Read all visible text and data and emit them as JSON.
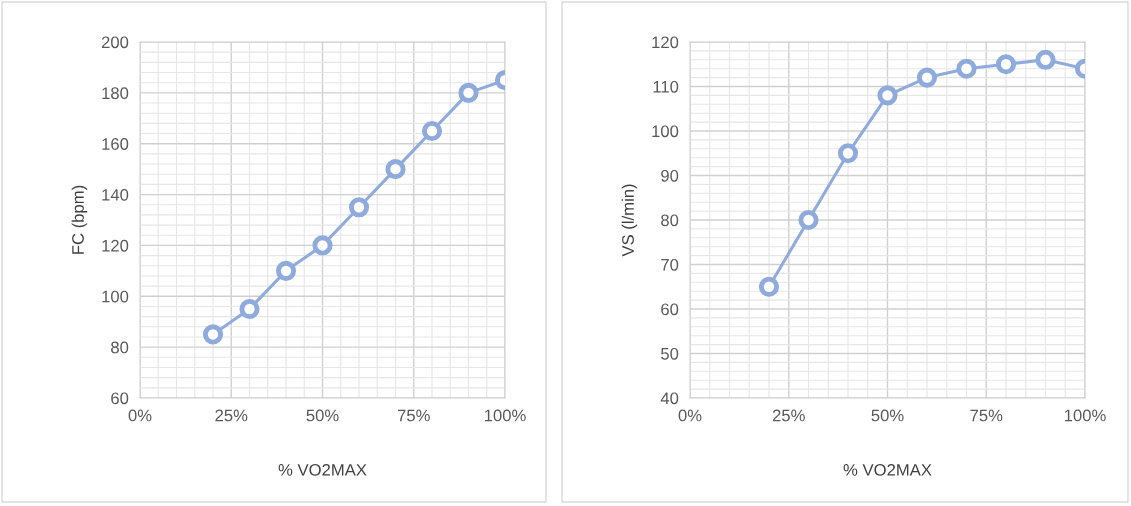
{
  "chart_data": [
    {
      "type": "line",
      "xlabel": "% VO2MAX",
      "ylabel": "FC (bpm)",
      "x": [
        20,
        30,
        40,
        50,
        60,
        70,
        80,
        90,
        100
      ],
      "series": [
        {
          "color": "#8faadc",
          "values": [
            85,
            95,
            110,
            120,
            135,
            150,
            165,
            180,
            185
          ]
        }
      ],
      "xlim": [
        0,
        100
      ],
      "xticks": [
        {
          "value": 0,
          "label": "0%"
        },
        {
          "value": 25,
          "label": "25%"
        },
        {
          "value": 50,
          "label": "50%"
        },
        {
          "value": 75,
          "label": "75%"
        },
        {
          "value": 100,
          "label": "100%"
        }
      ],
      "ylim": [
        60,
        200
      ],
      "yticks": [
        60,
        80,
        100,
        120,
        140,
        160,
        180,
        200
      ],
      "grid": true,
      "marker": "circle",
      "line_style": "solid"
    },
    {
      "type": "line",
      "xlabel": "% VO2MAX",
      "ylabel": "VS (l/min)",
      "x": [
        20,
        30,
        40,
        50,
        60,
        70,
        80,
        90,
        100
      ],
      "series": [
        {
          "color": "#8faadc",
          "values": [
            65,
            80,
            95,
            108,
            112,
            114,
            115,
            116,
            114
          ]
        }
      ],
      "xlim": [
        0,
        100
      ],
      "xticks": [
        {
          "value": 0,
          "label": "0%"
        },
        {
          "value": 25,
          "label": "25%"
        },
        {
          "value": 50,
          "label": "50%"
        },
        {
          "value": 75,
          "label": "75%"
        },
        {
          "value": 100,
          "label": "100%"
        }
      ],
      "ylim": [
        40,
        120
      ],
      "yticks": [
        40,
        50,
        60,
        70,
        80,
        90,
        100,
        110,
        120
      ],
      "grid": true,
      "marker": "circle",
      "line_style": "solid"
    }
  ]
}
